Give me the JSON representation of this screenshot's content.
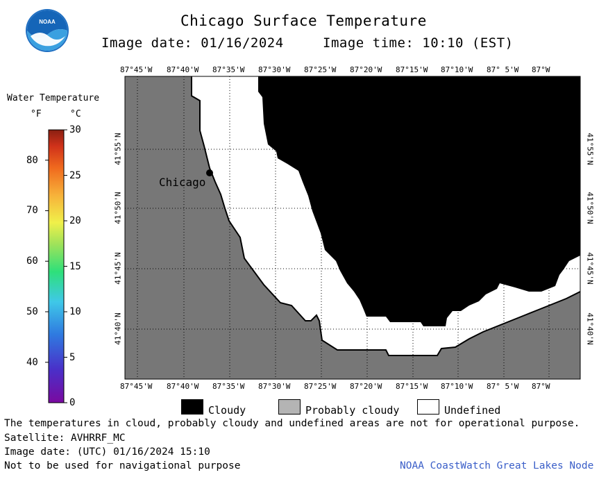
{
  "header": {
    "title": "Chicago Surface Temperature",
    "image_date": "Image date: 01/16/2024",
    "image_time": "Image time: 10:10 (EST)",
    "logo_text": "NOAA"
  },
  "colorbar": {
    "title": "Water Temperature",
    "unit_f": "°F",
    "unit_c": "°C",
    "f_ticks": [
      "80",
      "70",
      "60",
      "50",
      "40"
    ],
    "c_ticks": [
      "30",
      "25",
      "20",
      "15",
      "10",
      "5",
      "0"
    ]
  },
  "map": {
    "city_label": "Chicago",
    "lon_labels": [
      "87°45'W",
      "87°40'W",
      "87°35'W",
      "87°30'W",
      "87°25'W",
      "87°20'W",
      "87°15'W",
      "87°10'W",
      "87° 5'W",
      "87°W"
    ],
    "lat_labels": [
      "41°55'N",
      "41°50'N",
      "41°45'N",
      "41°40'N"
    ],
    "colors": {
      "land": "#777777",
      "cloudy": "#000000",
      "undefined": "#ffffff",
      "probably_cloudy": "#b4b4b4"
    }
  },
  "legend": {
    "cloudy": "Cloudy",
    "probably_cloudy": "Probably cloudy",
    "undefined": "Undefined"
  },
  "footer": {
    "disclaimer": "The temperatures in cloud, probably cloudy and undefined areas are not for operational purpose.",
    "satellite": "Satellite: AVHRRF_MC",
    "utc_date": "Image date: (UTC) 01/16/2024  15:10",
    "nav_warning": "Not to be used for navigational purpose",
    "credit": "NOAA CoastWatch Great Lakes Node",
    "credit_color": "#3a5ec8"
  }
}
